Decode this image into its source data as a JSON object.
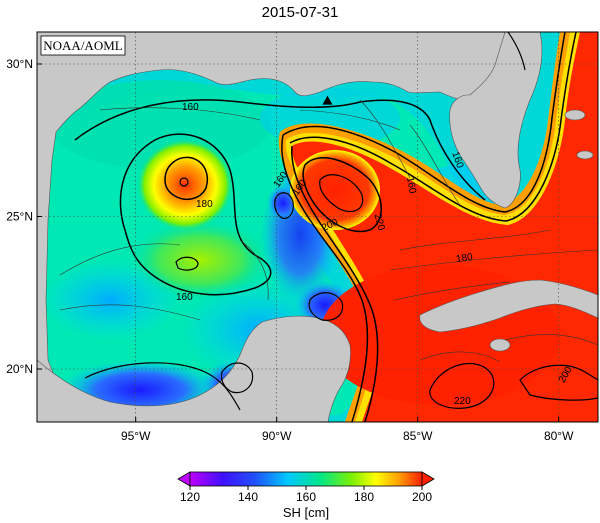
{
  "title": "2015-07-31",
  "attribution": "NOAA/AOML",
  "lat_ticks": [
    {
      "lat": 30,
      "label": "30°N"
    },
    {
      "lat": 25,
      "label": "25°N"
    },
    {
      "lat": 20,
      "label": "20°N"
    }
  ],
  "lon_ticks": [
    {
      "lon": -95,
      "label": "95°W"
    },
    {
      "lon": -90,
      "label": "90°W"
    },
    {
      "lon": -85,
      "label": "85°W"
    },
    {
      "lon": -80,
      "label": "80°W"
    }
  ],
  "contour_labels": [
    "160",
    "180",
    "160",
    "160",
    "160",
    "200",
    "220",
    "160",
    "180",
    "160",
    "200",
    "220"
  ],
  "colorbar": {
    "label": "SH [cm]",
    "min": 120,
    "max": 200,
    "ticks": [
      "120",
      "140",
      "160",
      "180",
      "200"
    ],
    "colors": [
      "#c000ff",
      "#2020ff",
      "#00c8ff",
      "#00e68c",
      "#7ef000",
      "#ffff00",
      "#ffa000",
      "#ff2000"
    ]
  },
  "marker": {
    "symbol": "triangle",
    "lon": -88.2,
    "lat": 28.8
  }
}
